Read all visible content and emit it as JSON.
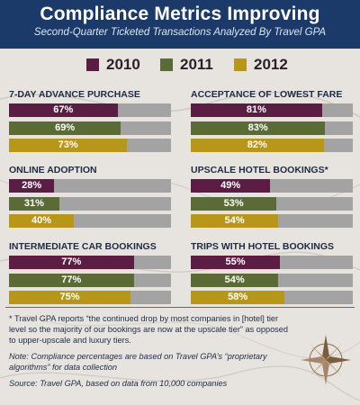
{
  "header": {
    "title": "Compliance Metrics Improving",
    "subtitle": "Second-Quarter Ticketed Transactions Analyzed By Travel GPA"
  },
  "colors": {
    "2010": "#5c1d45",
    "2011": "#5b6b35",
    "2012": "#b8961a",
    "track": "#a3a3a3",
    "header_bg": "#1b3a6a"
  },
  "chart_data": {
    "type": "bar",
    "orientation": "horizontal",
    "legend": [
      "2010",
      "2011",
      "2012"
    ],
    "legend_position": "top",
    "unit": "%",
    "xlim": [
      0,
      100
    ],
    "panels": [
      {
        "title": "7-DAY ADVANCE PURCHASE",
        "values": [
          67,
          69,
          73
        ],
        "labels": [
          "67%",
          "69%",
          "73%"
        ]
      },
      {
        "title": "ACCEPTANCE OF LOWEST FARE",
        "values": [
          81,
          83,
          82
        ],
        "labels": [
          "81%",
          "83%",
          "82%"
        ]
      },
      {
        "title": "ONLINE ADOPTION",
        "values": [
          28,
          31,
          40
        ],
        "labels": [
          "28%",
          "31%",
          "40%"
        ]
      },
      {
        "title": "UPSCALE HOTEL BOOKINGS*",
        "values": [
          49,
          53,
          54
        ],
        "labels": [
          "49%",
          "53%",
          "54%"
        ]
      },
      {
        "title": "INTERMEDIATE CAR BOOKINGS",
        "values": [
          77,
          77,
          75
        ],
        "labels": [
          "77%",
          "77%",
          "75%"
        ]
      },
      {
        "title": "TRIPS WITH HOTEL BOOKINGS",
        "values": [
          55,
          54,
          58
        ],
        "labels": [
          "55%",
          "54%",
          "58%"
        ]
      }
    ]
  },
  "notes": {
    "footnote": "* Travel GPA reports “the continued drop by most companies in [hotel] tier level so the majority of our bookings are now at the upscale tier” as opposed to upper-upscale and luxury tiers.",
    "note": "Note: Compliance percentages are based on Travel GPA’s “proprietary algorithms” for data collection",
    "source": "Source: Travel GPA, based on data from 10,000 companies"
  }
}
